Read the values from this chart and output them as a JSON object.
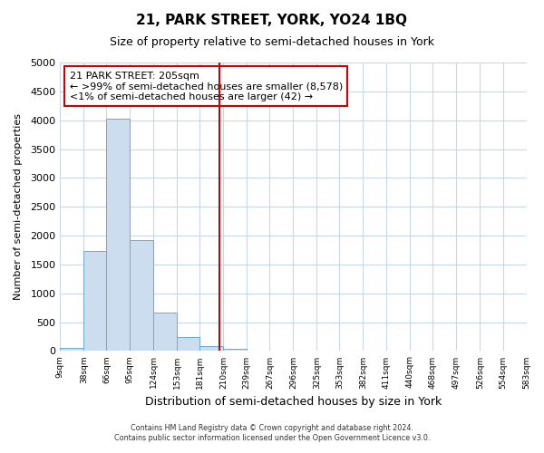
{
  "title": "21, PARK STREET, YORK, YO24 1BQ",
  "subtitle": "Size of property relative to semi-detached houses in York",
  "xlabel": "Distribution of semi-detached houses by size in York",
  "ylabel": "Number of semi-detached properties",
  "bin_edges": [
    9,
    38,
    66,
    95,
    124,
    153,
    181,
    210,
    239,
    267,
    296,
    325,
    353,
    382,
    411,
    440,
    468,
    497,
    526,
    554,
    583
  ],
  "bin_counts": [
    50,
    1730,
    4020,
    1930,
    660,
    240,
    90,
    42,
    0,
    0,
    0,
    0,
    0,
    0,
    0,
    0,
    0,
    0,
    0,
    0
  ],
  "bar_color": "#ccddf0",
  "bar_edge_color": "#6aaad4",
  "property_size": 205,
  "vline_color": "#cc0000",
  "annotation_text_line1": "21 PARK STREET: 205sqm",
  "annotation_text_line2": "← >99% of semi-detached houses are smaller (8,578)",
  "annotation_text_line3": "<1% of semi-detached houses are larger (42) →",
  "annotation_box_color": "#cc0000",
  "ylim": [
    0,
    5000
  ],
  "yticks": [
    0,
    500,
    1000,
    1500,
    2000,
    2500,
    3000,
    3500,
    4000,
    4500,
    5000
  ],
  "tick_labels": [
    "9sqm",
    "38sqm",
    "66sqm",
    "95sqm",
    "124sqm",
    "153sqm",
    "181sqm",
    "210sqm",
    "239sqm",
    "267sqm",
    "296sqm",
    "325sqm",
    "353sqm",
    "382sqm",
    "411sqm",
    "440sqm",
    "468sqm",
    "497sqm",
    "526sqm",
    "554sqm",
    "583sqm"
  ],
  "footer_line1": "Contains HM Land Registry data © Crown copyright and database right 2024.",
  "footer_line2": "Contains public sector information licensed under the Open Government Licence v3.0.",
  "background_color": "#ffffff",
  "grid_color": "#c8d8e8"
}
